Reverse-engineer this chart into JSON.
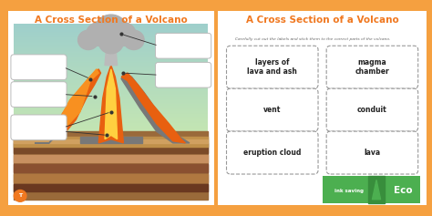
{
  "bg_color": "#f5a040",
  "title": "A Cross Section of a Volcano",
  "title_color": "#f07820",
  "title_fontsize": 7.5,
  "subtitle": "Carefully cut out the labels and stick them to the correct parts of the volcano.",
  "subtitle_color": "#666666",
  "subtitle_fontsize": 3.2,
  "label_boxes": [
    "layers of\nlava and ash",
    "magma\nchamber",
    "vent",
    "conduit",
    "eruption cloud",
    "lava"
  ],
  "sky_top": "#9ecfcc",
  "sky_bottom": "#c8e0a0",
  "ground_dark": "#8b5e3c",
  "ground_mid": "#a0724a",
  "ground_light": "#c8a060",
  "ground_stripe1": "#6b3a2a",
  "ground_stripe2": "#b08050",
  "volcano_gray": "#787878",
  "volcano_dark": "#606060",
  "lava_orange": "#e86010",
  "lava_mid": "#f89020",
  "lava_yellow": "#ffd040",
  "cloud_color": "#aaaaaa",
  "cloud_light": "#cccccc",
  "ink_saving_bg": "#4caf50",
  "ink_saving_text": "ink saving",
  "eco_text": "Eco"
}
